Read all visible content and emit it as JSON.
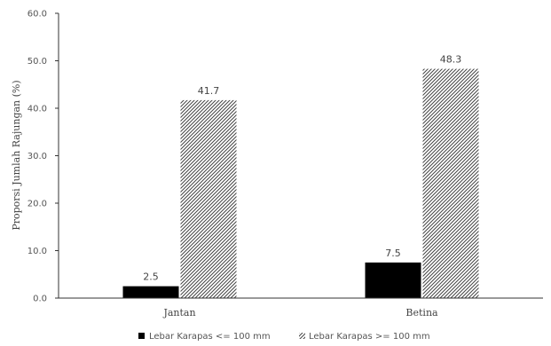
{
  "chart_data": {
    "type": "bar",
    "categories": [
      "Jantan",
      "Betina"
    ],
    "series": [
      {
        "name": "Lebar Karapas <= 100 mm",
        "values": [
          2.5,
          7.5
        ],
        "fill": "solid",
        "color": "#000000"
      },
      {
        "name": "Lebar Karapas >= 100 mm",
        "values": [
          41.7,
          48.3
        ],
        "fill": "hatched",
        "color": "#555555"
      }
    ],
    "data_labels": [
      [
        "2.5",
        "7.5"
      ],
      [
        "41.7",
        "48.3"
      ]
    ],
    "ylabel": "Proporsi Jumlah Rajungan (%)",
    "xlabel": "",
    "ylim": [
      0,
      60
    ],
    "yticks": [
      "0.0",
      "10.0",
      "20.0",
      "30.0",
      "40.0",
      "50.0",
      "60.0"
    ],
    "grid": false,
    "legend_position": "bottom"
  }
}
